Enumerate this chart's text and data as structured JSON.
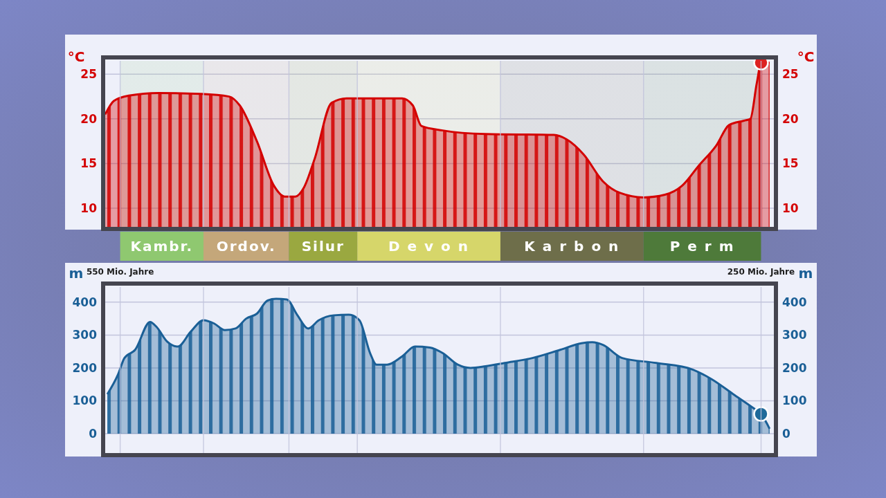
{
  "chart_data": [
    {
      "type": "area",
      "ylabel": "°C",
      "y2label": "°C",
      "xlim": [
        557,
        244
      ],
      "xticks": [
        {
          "value": 550,
          "label": null
        },
        {
          "value": 511,
          "label": null
        },
        {
          "value": 471,
          "label": null
        },
        {
          "value": 439,
          "label": null
        },
        {
          "value": 372,
          "label": null
        },
        {
          "value": 305,
          "label": null
        },
        {
          "value": 250,
          "label": null
        }
      ],
      "ylim": [
        7.9,
        26.5
      ],
      "yticks": [
        10,
        15,
        20,
        25
      ],
      "y2lim": [
        7.9,
        26.5
      ],
      "y2ticks": [
        10,
        15,
        20,
        25
      ],
      "grid": true,
      "tick_labels": "y",
      "bands": [
        {
          "axis": "x",
          "from": 550,
          "to": 511,
          "label": "Kambr.",
          "color": "#8fc870"
        },
        {
          "axis": "x",
          "from": 511,
          "to": 471,
          "label": "Ordov.",
          "color": "#c4a77a"
        },
        {
          "axis": "x",
          "from": 471,
          "to": 439,
          "label": "Silur",
          "color": "#9aa840"
        },
        {
          "axis": "x",
          "from": 439,
          "to": 372,
          "label": "D e v o n",
          "color": "#d6d66a"
        },
        {
          "axis": "x",
          "from": 372,
          "to": 305,
          "label": "K a r b o n",
          "color": "#6e6e4a"
        },
        {
          "axis": "x",
          "from": 305,
          "to": 250,
          "label": "P e r m",
          "color": "#4e7a3a"
        }
      ],
      "series": [
        {
          "color": "#d40000",
          "x": [
            557,
            553,
            546,
            532,
            512,
            499,
            494,
            486,
            478,
            473,
            468,
            464,
            459,
            451,
            444,
            418,
            413,
            409,
            399,
            379,
            347,
            341,
            333,
            324,
            316,
            305,
            295,
            287,
            279,
            271,
            265,
            258,
            255,
            252,
            250,
            246
          ],
          "values": [
            20.5,
            22,
            22.6,
            22.9,
            22.8,
            22.5,
            21.5,
            17.5,
            12.5,
            11.3,
            11.3,
            12.3,
            15.5,
            21.8,
            22.3,
            22.3,
            21.5,
            19.2,
            18.7,
            18.3,
            18.2,
            17.7,
            16,
            13,
            11.7,
            11.2,
            11.5,
            12.5,
            14.8,
            17,
            19.3,
            19.8,
            20,
            24,
            26.2,
            26.3
          ]
        },
        {
          "type": "scatter",
          "color": "#dd2222",
          "marker": "circle",
          "x": [
            250
          ],
          "values": [
            26.3
          ]
        }
      ]
    },
    {
      "type": "area",
      "ylabel": "m",
      "y2label": "m",
      "xlim": [
        557,
        244
      ],
      "xticks": [
        {
          "value": 550,
          "label": "550 Mio. Jahre"
        },
        {
          "value": 511,
          "label": null
        },
        {
          "value": 471,
          "label": null
        },
        {
          "value": 439,
          "label": null
        },
        {
          "value": 372,
          "label": null
        },
        {
          "value": 305,
          "label": null
        },
        {
          "value": 250,
          "label": "250 Mio. Jahre"
        }
      ],
      "ylim": [
        -59,
        446
      ],
      "yticks": [
        0,
        100,
        200,
        300,
        400
      ],
      "y2lim": [
        -59,
        446
      ],
      "y2ticks": [
        0,
        100,
        200,
        300,
        400
      ],
      "grid": true,
      "series": [
        {
          "color": "#1a5f96",
          "x": [
            556,
            551,
            548,
            543,
            536,
            533,
            528,
            523,
            517,
            511,
            506,
            501,
            496,
            491,
            486,
            481,
            477,
            472,
            467,
            462,
            457,
            450,
            443,
            438,
            433,
            430,
            425,
            418,
            412,
            405,
            399,
            392,
            386,
            379,
            370,
            357,
            344,
            334,
            329,
            324,
            315,
            299,
            282,
            273,
            263,
            253,
            250,
            246
          ],
          "values": [
            120,
            180,
            230,
            255,
            340,
            325,
            280,
            265,
            310,
            345,
            335,
            315,
            320,
            350,
            365,
            405,
            410,
            408,
            360,
            320,
            345,
            360,
            362,
            345,
            245,
            210,
            210,
            235,
            265,
            262,
            245,
            210,
            200,
            205,
            215,
            230,
            255,
            275,
            278,
            270,
            230,
            215,
            195,
            165,
            120,
            75,
            60,
            15
          ]
        },
        {
          "type": "scatter",
          "color": "#1f6a9a",
          "marker": "circle",
          "x": [
            250
          ],
          "values": [
            60
          ]
        }
      ]
    }
  ]
}
